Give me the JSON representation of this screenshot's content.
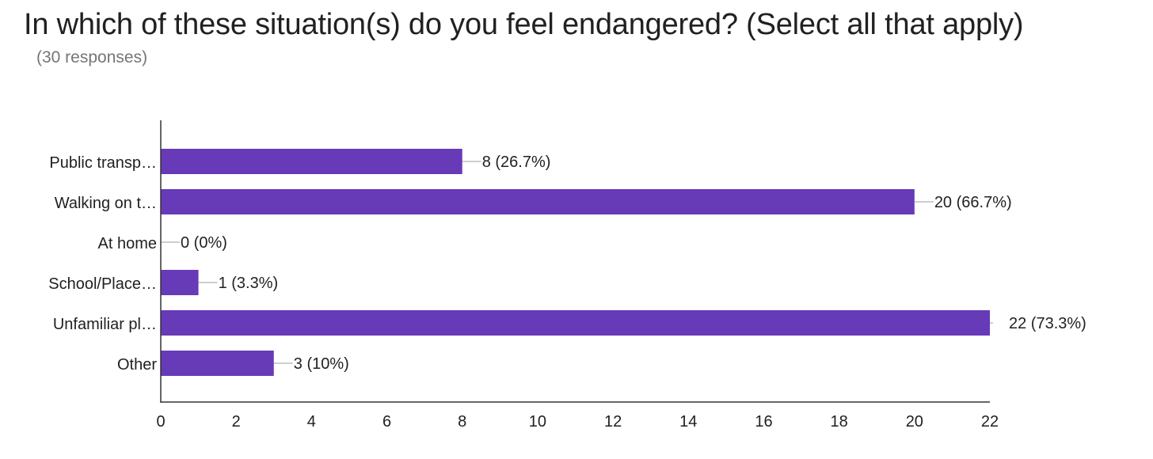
{
  "header": {
    "title": "In which of these situation(s) do you feel endangered? (Select all that apply)",
    "subtitle": "(30 responses)"
  },
  "colors": {
    "bar": "#673ab7",
    "axis": "#333333",
    "leader": "#9e9e9e",
    "text": "#212121"
  },
  "chart_data": {
    "type": "bar",
    "orientation": "horizontal",
    "title": "In which of these situation(s) do you feel endangered? (Select all that apply)",
    "subtitle": "(30 responses)",
    "categories": [
      "Public transp…",
      "Walking on t…",
      "At home",
      "School/Place…",
      "Unfamiliar pl…",
      "Other"
    ],
    "values": [
      8,
      20,
      0,
      1,
      22,
      3
    ],
    "data_labels": [
      "8 (26.7%)",
      "20 (66.7%)",
      "0 (0%)",
      "1 (3.3%)",
      "22 (73.3%)",
      "3 (10%)"
    ],
    "x_ticks": [
      0,
      2,
      4,
      6,
      8,
      10,
      12,
      14,
      16,
      18,
      20,
      22
    ],
    "xlim": [
      0,
      22
    ],
    "xlabel": "",
    "ylabel": "",
    "grid": false,
    "legend": "none"
  }
}
